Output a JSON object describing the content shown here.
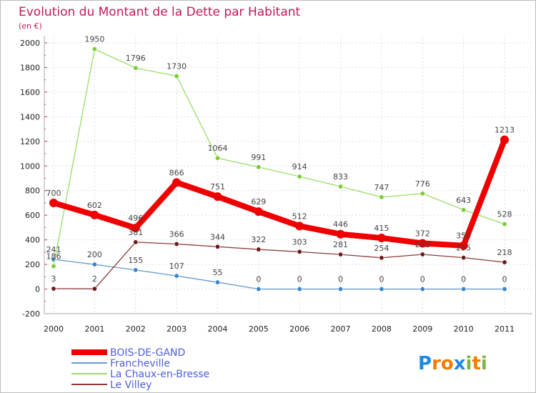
{
  "chart_data": {
    "type": "line",
    "title": "Evolution du Montant de la Dette par Habitant",
    "subtitle": "(en €)",
    "xlabel": "",
    "ylabel": "",
    "categories": [
      "2000",
      "2001",
      "2002",
      "2003",
      "2004",
      "2005",
      "2006",
      "2007",
      "2008",
      "2009",
      "2010",
      "2011"
    ],
    "y_ticks": [
      "-200",
      "0",
      "200",
      "400",
      "600",
      "800",
      "1000",
      "1200",
      "1400",
      "1600",
      "1800",
      "2000"
    ],
    "ylim": [
      -200,
      2000
    ],
    "grid": true,
    "legend_position": "bottom-left",
    "series": [
      {
        "name": "BOIS-DE-GAND",
        "color": "#ff0000",
        "values": [
          700,
          602,
          496,
          866,
          751,
          629,
          512,
          446,
          415,
          372,
          353,
          1213
        ]
      },
      {
        "name": "Francheville",
        "color": "#6699cc",
        "values": [
          241,
          200,
          155,
          107,
          55,
          0,
          0,
          0,
          0,
          0,
          0,
          0
        ]
      },
      {
        "name": "La Chaux-en-Bresse",
        "color": "#99dd66",
        "values": [
          186,
          1950,
          1796,
          1730,
          1064,
          991,
          914,
          833,
          747,
          776,
          643,
          528
        ]
      },
      {
        "name": "Le Villey",
        "color": "#7b2020",
        "values": [
          3,
          2,
          381,
          366,
          344,
          322,
          303,
          281,
          254,
          282,
          255,
          218
        ]
      }
    ]
  },
  "logo": {
    "text": "Proxiti"
  }
}
